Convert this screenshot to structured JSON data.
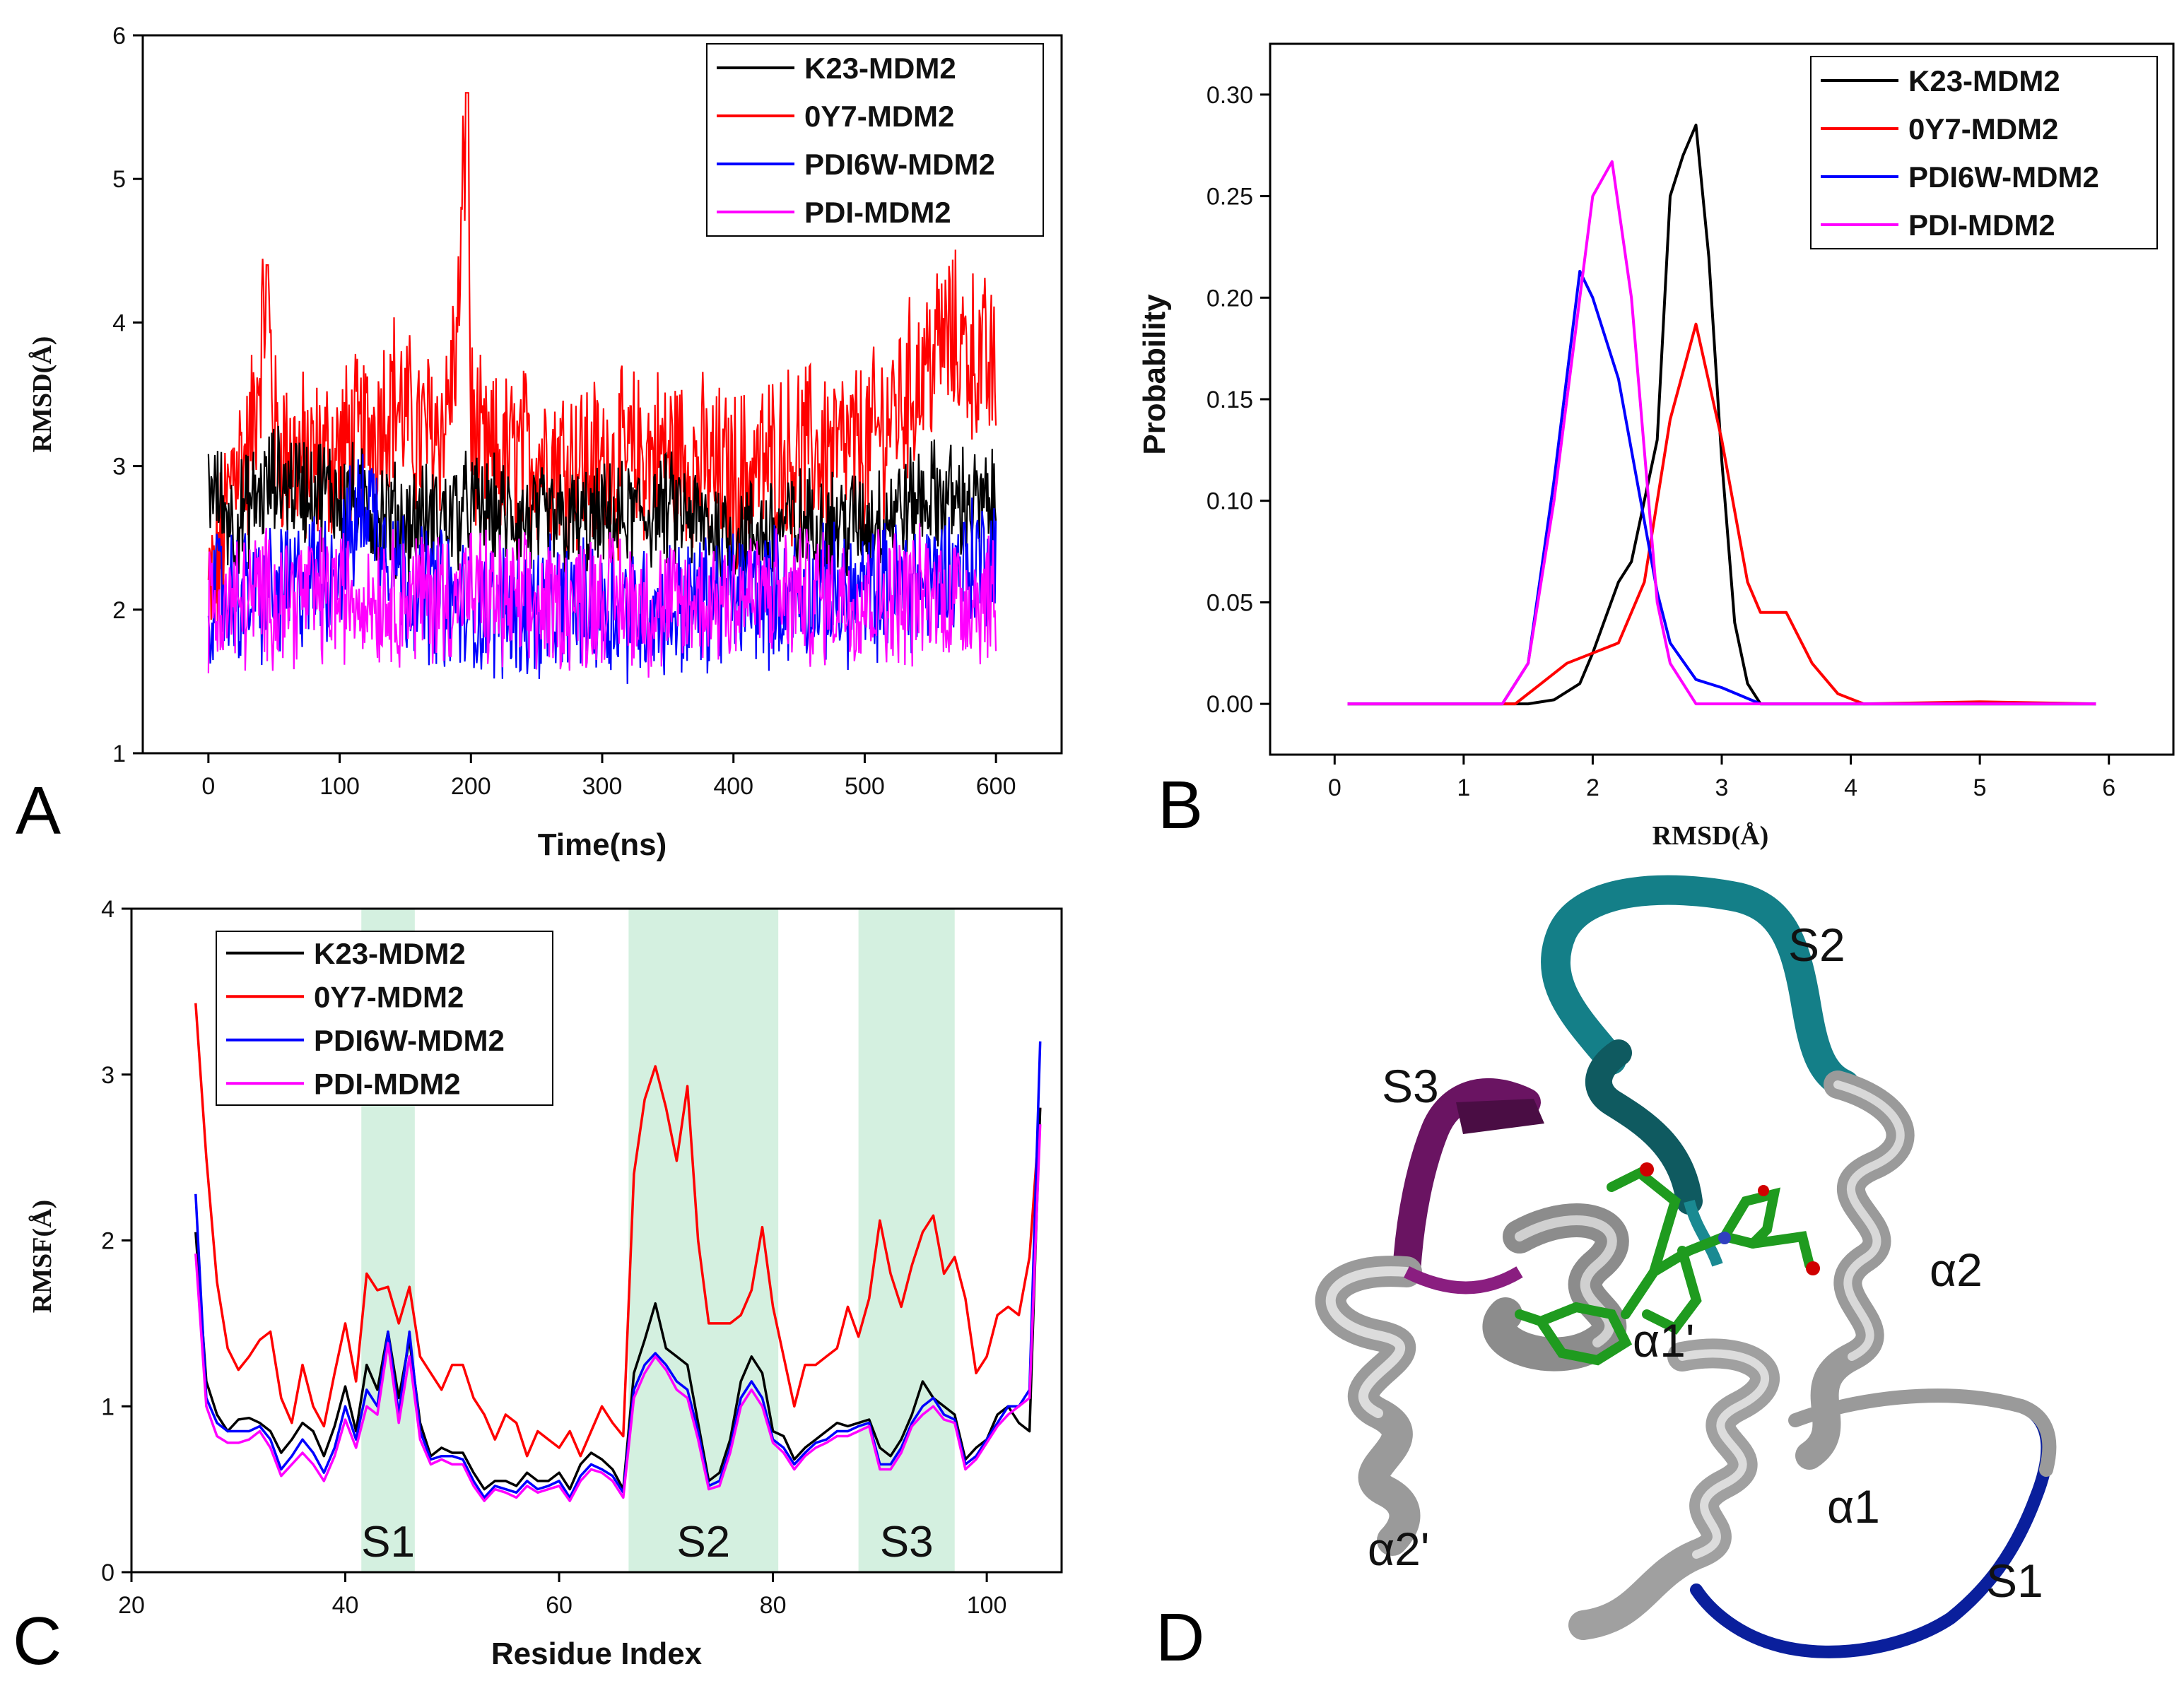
{
  "colors": {
    "K23-MDM2": "#000000",
    "0Y7-MDM2": "#ff0000",
    "PDI6W-MDM2": "#0000ff",
    "PDI-MDM2": "#ff00ff",
    "shade": "#d4f0e0"
  },
  "panel_labels": [
    "A",
    "B",
    "C",
    "D"
  ],
  "chart_data": [
    {
      "type": "line",
      "panel": "A",
      "xlabel": "Time(ns)",
      "ylabel": "RMSD(Å)",
      "xlim": [
        -50,
        650
      ],
      "ylim": [
        1,
        6
      ],
      "xticks": [
        "0",
        "100",
        "200",
        "300",
        "400",
        "500",
        "600"
      ],
      "yticks": [
        "1",
        "2",
        "3",
        "4",
        "5",
        "6"
      ],
      "legend": [
        "K23-MDM2",
        "0Y7-MDM2",
        "PDI6W-MDM2",
        "PDI-MDM2"
      ],
      "legend_position": "top-right",
      "series": [
        {
          "name": "0Y7-MDM2",
          "x": [
            0,
            10,
            20,
            30,
            40,
            45,
            50,
            60,
            80,
            100,
            120,
            140,
            160,
            180,
            190,
            197,
            200,
            210,
            250,
            300,
            350,
            400,
            420,
            450,
            500,
            540,
            560,
            580,
            600
          ],
          "values": [
            2.1,
            2.4,
            3.1,
            3.0,
            3.8,
            4.4,
            3.2,
            3.1,
            3.0,
            3.1,
            3.2,
            3.5,
            3.2,
            3.3,
            3.9,
            5.6,
            3.3,
            3.0,
            3.1,
            3.0,
            3.1,
            2.9,
            3.0,
            3.1,
            3.1,
            3.6,
            3.9,
            3.8,
            3.6
          ]
        },
        {
          "name": "K23-MDM2",
          "x": [
            0,
            20,
            50,
            100,
            150,
            200,
            250,
            300,
            350,
            400,
            450,
            500,
            550,
            600
          ],
          "values": [
            2.9,
            2.6,
            2.9,
            2.8,
            2.6,
            2.7,
            2.6,
            2.6,
            2.7,
            2.5,
            2.6,
            2.6,
            2.8,
            2.7
          ]
        },
        {
          "name": "PDI6W-MDM2",
          "x": [
            0,
            20,
            50,
            100,
            120,
            150,
            200,
            250,
            300,
            350,
            400,
            450,
            500,
            550,
            600
          ],
          "values": [
            2.1,
            2.1,
            2.1,
            2.3,
            2.8,
            2.2,
            2.0,
            2.0,
            2.0,
            2.0,
            2.1,
            2.1,
            2.1,
            2.2,
            2.4
          ]
        },
        {
          "name": "PDI-MDM2",
          "x": [
            0,
            50,
            100,
            150,
            200,
            250,
            300,
            350,
            400,
            450,
            500,
            550,
            600
          ],
          "values": [
            2.0,
            2.1,
            2.1,
            2.1,
            2.1,
            2.0,
            2.1,
            2.0,
            2.1,
            2.1,
            2.1,
            2.1,
            2.1
          ]
        }
      ]
    },
    {
      "type": "line",
      "panel": "B",
      "xlabel": "RMSD(Å)",
      "ylabel": "Probability",
      "xlim": [
        -0.5,
        6.5
      ],
      "ylim": [
        -0.025,
        0.325
      ],
      "xticks": [
        "0",
        "1",
        "2",
        "3",
        "4",
        "5",
        "6"
      ],
      "yticks": [
        "0.00",
        "0.05",
        "0.10",
        "0.15",
        "0.20",
        "0.25",
        "0.30"
      ],
      "legend": [
        "K23-MDM2",
        "0Y7-MDM2",
        "PDI6W-MDM2",
        "PDI-MDM2"
      ],
      "legend_position": "top-right",
      "series": [
        {
          "name": "K23-MDM2",
          "x": [
            0.1,
            1.5,
            1.7,
            1.9,
            2.0,
            2.2,
            2.3,
            2.5,
            2.6,
            2.7,
            2.8,
            2.9,
            3.0,
            3.1,
            3.2,
            3.3,
            5.9
          ],
          "values": [
            0,
            0,
            0.002,
            0.01,
            0.025,
            0.06,
            0.07,
            0.13,
            0.25,
            0.27,
            0.285,
            0.22,
            0.12,
            0.04,
            0.01,
            0,
            0
          ]
        },
        {
          "name": "0Y7-MDM2",
          "x": [
            0.1,
            1.4,
            1.6,
            1.8,
            2.0,
            2.2,
            2.4,
            2.6,
            2.8,
            3.0,
            3.2,
            3.3,
            3.5,
            3.7,
            3.9,
            4.1,
            5.0,
            5.9
          ],
          "values": [
            0,
            0,
            0.01,
            0.02,
            0.025,
            0.03,
            0.06,
            0.14,
            0.187,
            0.13,
            0.06,
            0.045,
            0.045,
            0.02,
            0.005,
            0,
            0.001,
            0
          ]
        },
        {
          "name": "PDI6W-MDM2",
          "x": [
            0.1,
            1.3,
            1.5,
            1.7,
            1.9,
            2.0,
            2.2,
            2.4,
            2.5,
            2.6,
            2.8,
            3.0,
            3.3,
            5.9
          ],
          "values": [
            0,
            0,
            0.02,
            0.11,
            0.213,
            0.2,
            0.16,
            0.09,
            0.055,
            0.03,
            0.012,
            0.008,
            0,
            0
          ]
        },
        {
          "name": "PDI-MDM2",
          "x": [
            0.1,
            1.3,
            1.5,
            1.7,
            1.9,
            2.0,
            2.15,
            2.3,
            2.5,
            2.6,
            2.8,
            3.0,
            5.9
          ],
          "values": [
            0,
            0,
            0.02,
            0.1,
            0.2,
            0.25,
            0.267,
            0.2,
            0.05,
            0.02,
            0,
            0,
            0
          ]
        }
      ]
    },
    {
      "type": "line",
      "panel": "C",
      "xlabel": "Residue Index",
      "ylabel": "RMSF(Å)",
      "xlim": [
        20,
        107
      ],
      "ylim": [
        0,
        4
      ],
      "xticks": [
        "20",
        "40",
        "60",
        "80",
        "100"
      ],
      "yticks": [
        "0",
        "1",
        "2",
        "3",
        "4"
      ],
      "legend": [
        "K23-MDM2",
        "0Y7-MDM2",
        "PDI6W-MDM2",
        "PDI-MDM2"
      ],
      "legend_position": "top-left",
      "shaded_regions": [
        {
          "label": "S1",
          "range": [
            41.5,
            46.5
          ]
        },
        {
          "label": "S2",
          "range": [
            66.5,
            80.5
          ]
        },
        {
          "label": "S3",
          "range": [
            88,
            97
          ]
        }
      ],
      "series": [
        {
          "name": "0Y7-MDM2",
          "x": [
            26,
            27,
            28,
            29,
            30,
            31,
            32,
            33,
            34,
            35,
            36,
            37,
            38,
            39,
            40,
            41,
            42,
            43,
            44,
            45,
            46,
            47,
            48,
            49,
            50,
            51,
            52,
            53,
            54,
            55,
            56,
            57,
            58,
            59,
            60,
            61,
            62,
            63,
            64,
            65,
            66,
            67,
            68,
            69,
            70,
            71,
            72,
            73,
            74,
            75,
            76,
            77,
            78,
            79,
            80,
            81,
            82,
            83,
            84,
            85,
            86,
            87,
            88,
            89,
            90,
            91,
            92,
            93,
            94,
            95,
            96,
            97,
            98,
            99,
            100,
            101,
            102,
            103,
            104,
            105
          ],
          "values": [
            3.43,
            2.5,
            1.75,
            1.35,
            1.22,
            1.3,
            1.4,
            1.45,
            1.05,
            0.9,
            1.25,
            1.0,
            0.88,
            1.2,
            1.5,
            1.15,
            1.8,
            1.7,
            1.72,
            1.5,
            1.72,
            1.3,
            1.2,
            1.1,
            1.25,
            1.25,
            1.05,
            0.95,
            0.8,
            0.95,
            0.9,
            0.7,
            0.85,
            0.8,
            0.75,
            0.85,
            0.7,
            0.85,
            1.0,
            0.9,
            0.82,
            2.4,
            2.85,
            3.05,
            2.8,
            2.48,
            2.93,
            2.0,
            1.5,
            1.5,
            1.5,
            1.55,
            1.7,
            2.08,
            1.6,
            1.3,
            1.0,
            1.25,
            1.25,
            1.3,
            1.35,
            1.6,
            1.42,
            1.65,
            2.12,
            1.8,
            1.6,
            1.85,
            2.05,
            2.15,
            1.8,
            1.9,
            1.65,
            1.2,
            1.3,
            1.55,
            1.6,
            1.55,
            1.9,
            2.8
          ]
        },
        {
          "name": "K23-MDM2",
          "x": [
            26,
            27,
            28,
            29,
            30,
            31,
            32,
            33,
            34,
            35,
            36,
            37,
            38,
            39,
            40,
            41,
            42,
            43,
            44,
            45,
            46,
            47,
            48,
            49,
            50,
            51,
            52,
            53,
            54,
            55,
            56,
            57,
            58,
            59,
            60,
            61,
            62,
            63,
            64,
            65,
            66,
            67,
            68,
            69,
            70,
            71,
            72,
            73,
            74,
            75,
            76,
            77,
            78,
            79,
            80,
            81,
            82,
            83,
            84,
            85,
            86,
            87,
            88,
            89,
            90,
            91,
            92,
            93,
            94,
            95,
            96,
            97,
            98,
            99,
            100,
            101,
            102,
            103,
            104,
            105
          ],
          "values": [
            2.05,
            1.15,
            0.95,
            0.85,
            0.92,
            0.93,
            0.9,
            0.85,
            0.72,
            0.8,
            0.9,
            0.85,
            0.7,
            0.88,
            1.12,
            0.85,
            1.25,
            1.1,
            1.45,
            1.05,
            1.4,
            0.9,
            0.7,
            0.75,
            0.72,
            0.72,
            0.6,
            0.5,
            0.55,
            0.55,
            0.52,
            0.6,
            0.55,
            0.55,
            0.6,
            0.5,
            0.65,
            0.72,
            0.68,
            0.62,
            0.5,
            1.2,
            1.4,
            1.62,
            1.35,
            1.3,
            1.25,
            0.9,
            0.55,
            0.6,
            0.8,
            1.15,
            1.3,
            1.2,
            0.85,
            0.82,
            0.68,
            0.75,
            0.8,
            0.85,
            0.9,
            0.88,
            0.9,
            0.92,
            0.75,
            0.7,
            0.8,
            0.95,
            1.15,
            1.05,
            1.0,
            0.95,
            0.68,
            0.75,
            0.8,
            0.95,
            1.0,
            0.9,
            0.85,
            2.8
          ]
        },
        {
          "name": "PDI6W-MDM2",
          "x": [
            26,
            27,
            28,
            29,
            30,
            31,
            32,
            33,
            34,
            35,
            36,
            37,
            38,
            39,
            40,
            41,
            42,
            43,
            44,
            45,
            46,
            47,
            48,
            49,
            50,
            51,
            52,
            53,
            54,
            55,
            56,
            57,
            58,
            59,
            60,
            61,
            62,
            63,
            64,
            65,
            66,
            67,
            68,
            69,
            70,
            71,
            72,
            73,
            74,
            75,
            76,
            77,
            78,
            79,
            80,
            81,
            82,
            83,
            84,
            85,
            86,
            87,
            88,
            89,
            90,
            91,
            92,
            93,
            94,
            95,
            96,
            97,
            98,
            99,
            100,
            101,
            102,
            103,
            104,
            105
          ],
          "values": [
            2.28,
            1.05,
            0.9,
            0.85,
            0.85,
            0.85,
            0.88,
            0.8,
            0.62,
            0.7,
            0.8,
            0.72,
            0.6,
            0.75,
            1.0,
            0.8,
            1.1,
            1.0,
            1.45,
            0.95,
            1.45,
            0.85,
            0.68,
            0.7,
            0.7,
            0.68,
            0.55,
            0.45,
            0.52,
            0.5,
            0.48,
            0.55,
            0.5,
            0.52,
            0.55,
            0.45,
            0.58,
            0.65,
            0.62,
            0.58,
            0.48,
            1.1,
            1.25,
            1.32,
            1.25,
            1.15,
            1.1,
            0.85,
            0.52,
            0.55,
            0.75,
            1.05,
            1.15,
            1.05,
            0.8,
            0.75,
            0.65,
            0.72,
            0.78,
            0.8,
            0.85,
            0.85,
            0.88,
            0.9,
            0.65,
            0.65,
            0.75,
            0.9,
            1.0,
            1.05,
            0.95,
            0.92,
            0.65,
            0.7,
            0.8,
            0.9,
            1.0,
            1.0,
            1.1,
            3.2
          ]
        },
        {
          "name": "PDI-MDM2",
          "x": [
            26,
            27,
            28,
            29,
            30,
            31,
            32,
            33,
            34,
            35,
            36,
            37,
            38,
            39,
            40,
            41,
            42,
            43,
            44,
            45,
            46,
            47,
            48,
            49,
            50,
            51,
            52,
            53,
            54,
            55,
            56,
            57,
            58,
            59,
            60,
            61,
            62,
            63,
            64,
            65,
            66,
            67,
            68,
            69,
            70,
            71,
            72,
            73,
            74,
            75,
            76,
            77,
            78,
            79,
            80,
            81,
            82,
            83,
            84,
            85,
            86,
            87,
            88,
            89,
            90,
            91,
            92,
            93,
            94,
            95,
            96,
            97,
            98,
            99,
            100,
            101,
            102,
            103,
            104,
            105
          ],
          "values": [
            1.92,
            1.0,
            0.82,
            0.78,
            0.78,
            0.8,
            0.85,
            0.75,
            0.58,
            0.65,
            0.72,
            0.65,
            0.55,
            0.7,
            0.92,
            0.75,
            1.0,
            0.95,
            1.38,
            0.9,
            1.3,
            0.8,
            0.65,
            0.68,
            0.65,
            0.65,
            0.52,
            0.43,
            0.5,
            0.48,
            0.45,
            0.52,
            0.48,
            0.5,
            0.52,
            0.43,
            0.55,
            0.62,
            0.6,
            0.55,
            0.45,
            1.05,
            1.2,
            1.3,
            1.22,
            1.1,
            1.05,
            0.8,
            0.5,
            0.52,
            0.72,
            1.0,
            1.1,
            1.0,
            0.78,
            0.72,
            0.62,
            0.7,
            0.75,
            0.78,
            0.82,
            0.82,
            0.85,
            0.88,
            0.62,
            0.62,
            0.72,
            0.88,
            0.95,
            1.0,
            0.92,
            0.9,
            0.62,
            0.68,
            0.78,
            0.88,
            0.95,
            1.0,
            1.05,
            2.7
          ]
        }
      ]
    }
  ],
  "structure_labels": {
    "S2": "S2",
    "S3": "S3",
    "a2": "α2",
    "a1p": "α1'",
    "a1": "α1",
    "a2p": "α2'",
    "S1": "S1"
  }
}
